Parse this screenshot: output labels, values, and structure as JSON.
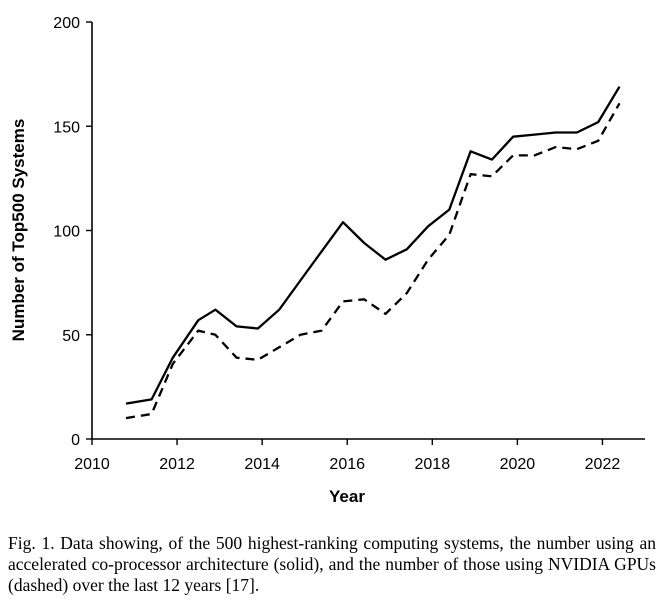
{
  "chart_data": {
    "type": "line",
    "title": "",
    "xlabel": "Year",
    "ylabel": "Number of Top500 Systems",
    "xlim": [
      2010,
      2023
    ],
    "ylim": [
      0,
      200
    ],
    "xticks": [
      "2010",
      "2012",
      "2014",
      "2016",
      "2018",
      "2020",
      "2022"
    ],
    "yticks": [
      "0",
      "50",
      "100",
      "150",
      "200"
    ],
    "grid": false,
    "legend": "none",
    "series": [
      {
        "style": "solid",
        "x": [
          2010.8,
          2011.4,
          2011.9,
          2012.5,
          2012.9,
          2013.4,
          2013.9,
          2014.4,
          2014.9,
          2015.4,
          2015.9,
          2016.4,
          2016.9,
          2017.4,
          2017.9,
          2018.4,
          2018.9,
          2019.4,
          2019.9,
          2020.4,
          2020.9,
          2021.4,
          2021.9,
          2022.4
        ],
        "values": [
          17,
          19,
          39,
          57,
          62,
          54,
          53,
          62,
          76,
          90,
          104,
          94,
          86,
          91,
          102,
          110,
          138,
          134,
          145,
          146,
          147,
          147,
          152,
          169
        ]
      },
      {
        "style": "dashed",
        "x": [
          2010.8,
          2011.4,
          2011.9,
          2012.5,
          2012.9,
          2013.4,
          2013.9,
          2014.4,
          2014.9,
          2015.4,
          2015.9,
          2016.4,
          2016.9,
          2017.4,
          2017.9,
          2018.4,
          2018.9,
          2019.4,
          2019.9,
          2020.4,
          2020.9,
          2021.4,
          2021.9,
          2022.4
        ],
        "values": [
          10,
          12,
          36,
          52,
          50,
          39,
          38,
          44,
          50,
          52,
          66,
          67,
          60,
          70,
          86,
          98,
          127,
          126,
          136,
          136,
          140,
          139,
          143,
          161
        ]
      }
    ]
  },
  "caption": {
    "text": "Fig. 1.   Data showing, of the 500 highest-ranking computing systems, the number using an accelerated co-processor architecture (solid), and the number of those using NVIDIA GPUs (dashed) over the last 12 years [17]."
  }
}
